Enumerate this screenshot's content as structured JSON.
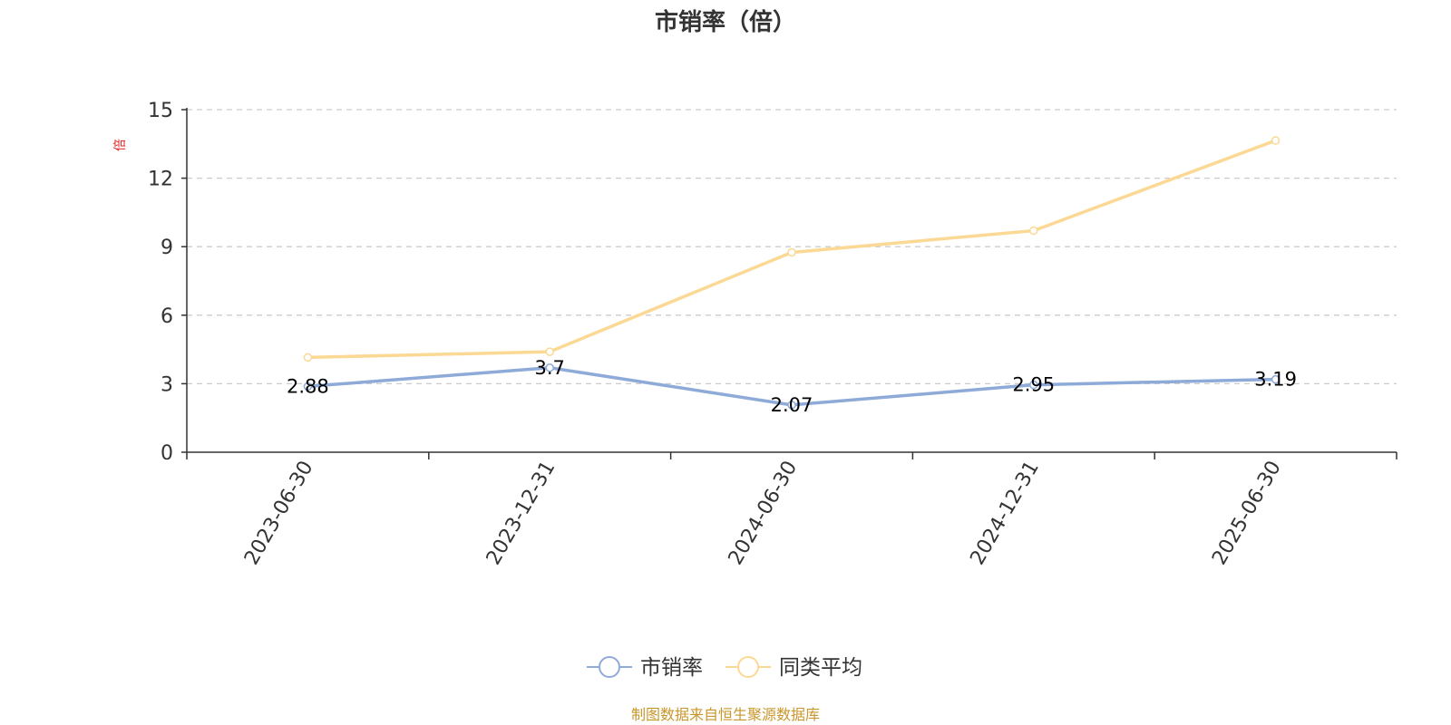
{
  "chart_data": {
    "type": "line",
    "title": "市销率（倍）",
    "ylabel": "倍",
    "categories": [
      "2023-06-30",
      "2023-12-31",
      "2024-06-30",
      "2024-12-31",
      "2025-06-30"
    ],
    "ylim": [
      0,
      15
    ],
    "yticks": [
      0,
      3,
      6,
      9,
      12,
      15
    ],
    "grid": true,
    "legend_position": "bottom-center",
    "series": [
      {
        "name": "市销率",
        "values": [
          2.88,
          3.7,
          2.07,
          2.95,
          3.19
        ],
        "labels": [
          "2.88",
          "3.7",
          "2.07",
          "2.95",
          "3.19"
        ],
        "show_labels": true,
        "color": "#8eaad8"
      },
      {
        "name": "同类平均",
        "values": [
          4.15,
          4.4,
          8.75,
          9.7,
          13.65
        ],
        "show_labels": false,
        "color": "#fbd994"
      }
    ]
  },
  "footer": {
    "source": "制图数据来自恒生聚源数据库",
    "source_color": "#c9962b"
  },
  "colors": {
    "axis": "#333333",
    "grid": "#cccccc",
    "unit": "#e02020"
  }
}
